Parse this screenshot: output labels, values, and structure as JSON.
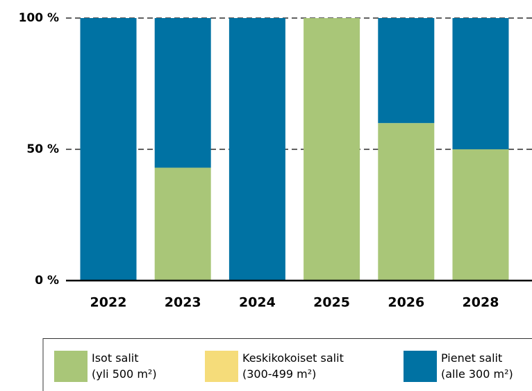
{
  "chart_data": {
    "type": "stacked_bar",
    "categories": [
      "2022",
      "2023",
      "2024",
      "2025",
      "2026",
      "2028"
    ],
    "series": [
      {
        "name": "Isot salit\n(yli 500 m²)",
        "color": "#a9c678",
        "values": [
          0,
          43,
          0,
          100,
          60,
          50
        ]
      },
      {
        "name": "Keskikokoiset salit\n(300-499 m²)",
        "color": "#f5dc7a",
        "values": [
          0,
          0,
          0,
          0,
          0,
          0
        ]
      },
      {
        "name": "Pienet salit\n(alle 300 m²)",
        "color": "#0072a3",
        "values": [
          100,
          57,
          100,
          0,
          40,
          50
        ]
      }
    ],
    "ylim": [
      0,
      100
    ],
    "yticks": [
      {
        "value": 0,
        "label": "0 %"
      },
      {
        "value": 50,
        "label": "50 %"
      },
      {
        "value": 100,
        "label": "100 %"
      }
    ],
    "grid": true,
    "legend": "bottom"
  }
}
